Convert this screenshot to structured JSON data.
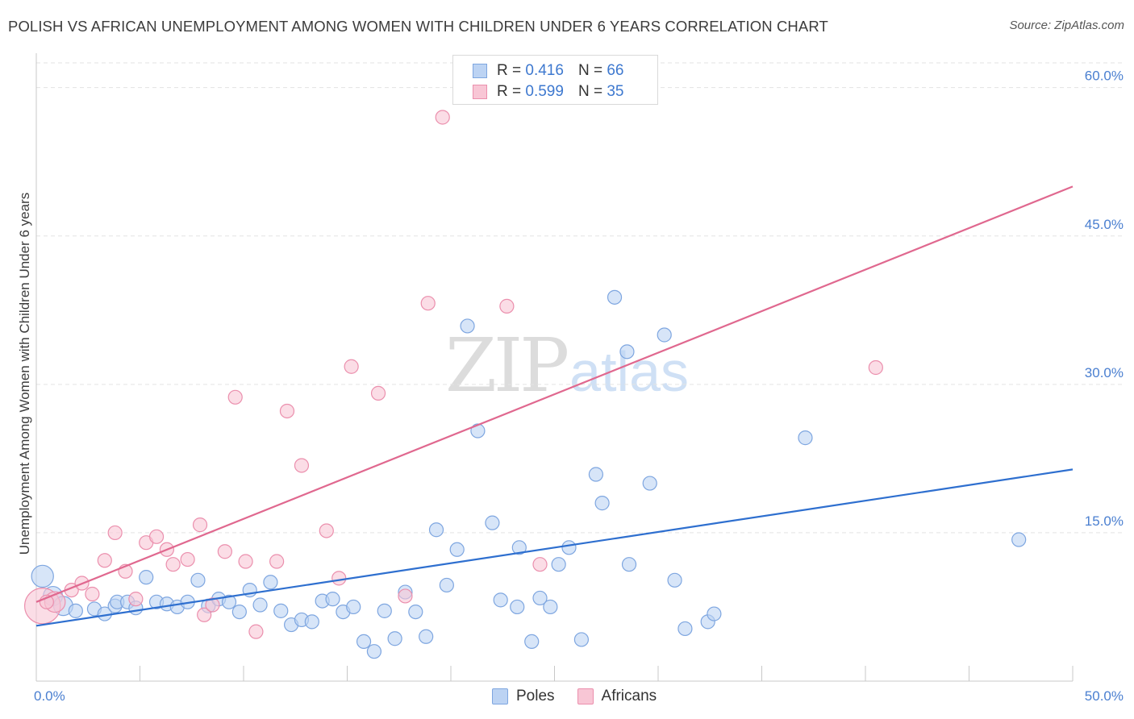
{
  "title": "POLISH VS AFRICAN UNEMPLOYMENT AMONG WOMEN WITH CHILDREN UNDER 6 YEARS CORRELATION CHART",
  "source": "Source: ZipAtlas.com",
  "watermark": {
    "zip": "ZIP",
    "atlas": "atlas"
  },
  "legend_top": {
    "rows": [
      {
        "r_label": "R = ",
        "r_value": "0.416",
        "n_label": "N = ",
        "n_value": "66"
      },
      {
        "r_label": "R = ",
        "r_value": "0.599",
        "n_label": "N = ",
        "n_value": "35"
      }
    ]
  },
  "legend_bottom": [
    "Poles",
    "Africans"
  ],
  "colors": {
    "poles_fill": "#bcd3f3",
    "poles_stroke": "#7ea6e0",
    "poles_line": "#2e6fcf",
    "africans_fill": "#f8c6d5",
    "africans_stroke": "#eb8fad",
    "africans_line": "#e0688f",
    "tick_text": "#4a7fd0",
    "grid": "#e3e3e3"
  },
  "chart_data": {
    "type": "scatter",
    "title": "POLISH VS AFRICAN UNEMPLOYMENT AMONG WOMEN WITH CHILDREN UNDER 6 YEARS CORRELATION CHART",
    "xlabel": "",
    "ylabel": "Unemployment Among Women with Children Under 6 years",
    "xlim": [
      0,
      50
    ],
    "ylim": [
      0,
      62.5
    ],
    "x_tick_labels": [
      "0.0%",
      "50.0%"
    ],
    "y_ticks": [
      15,
      30,
      45,
      60
    ],
    "y_tick_labels": [
      "15.0%",
      "30.0%",
      "45.0%",
      "60.0%"
    ],
    "grid": true,
    "legend_position": "top-center",
    "series": [
      {
        "name": "Poles",
        "R": 0.416,
        "N": 66,
        "trend": {
          "x": [
            0,
            50
          ],
          "y": [
            5.6,
            21.4
          ]
        },
        "points": [
          [
            0.3,
            10.6,
            1.6
          ],
          [
            0.8,
            8.6,
            1.4
          ],
          [
            1.3,
            7.6,
            1.4
          ],
          [
            1.9,
            7.1,
            1
          ],
          [
            2.8,
            7.3,
            1
          ],
          [
            3.3,
            6.8,
            1
          ],
          [
            3.8,
            7.6,
            1
          ],
          [
            3.9,
            8.0,
            1
          ],
          [
            4.4,
            8.0,
            1
          ],
          [
            4.8,
            7.4,
            1
          ],
          [
            5.3,
            10.5,
            1
          ],
          [
            5.8,
            8.0,
            1
          ],
          [
            6.3,
            7.8,
            1
          ],
          [
            6.8,
            7.5,
            1
          ],
          [
            7.3,
            8.0,
            1
          ],
          [
            7.8,
            10.2,
            1
          ],
          [
            8.3,
            7.6,
            1
          ],
          [
            8.8,
            8.3,
            1
          ],
          [
            9.3,
            8.0,
            1
          ],
          [
            9.8,
            7.0,
            1
          ],
          [
            10.3,
            9.2,
            1
          ],
          [
            10.8,
            7.7,
            1
          ],
          [
            11.3,
            10.0,
            1
          ],
          [
            11.8,
            7.1,
            1
          ],
          [
            12.3,
            5.7,
            1
          ],
          [
            12.8,
            6.2,
            1
          ],
          [
            13.3,
            6.0,
            1
          ],
          [
            13.8,
            8.1,
            1
          ],
          [
            14.3,
            8.3,
            1
          ],
          [
            14.8,
            7.0,
            1
          ],
          [
            15.3,
            7.5,
            1
          ],
          [
            15.8,
            4.0,
            1
          ],
          [
            16.3,
            3.0,
            1
          ],
          [
            16.8,
            7.1,
            1
          ],
          [
            17.3,
            4.3,
            1
          ],
          [
            17.8,
            9.0,
            1
          ],
          [
            18.3,
            7.0,
            1
          ],
          [
            18.8,
            4.5,
            1
          ],
          [
            19.3,
            15.3,
            1
          ],
          [
            19.8,
            9.7,
            1
          ],
          [
            20.3,
            13.3,
            1
          ],
          [
            20.8,
            35.9,
            1
          ],
          [
            21.3,
            25.3,
            1
          ],
          [
            22.0,
            16.0,
            1
          ],
          [
            22.4,
            8.2,
            1
          ],
          [
            23.2,
            7.5,
            1
          ],
          [
            23.9,
            4.0,
            1
          ],
          [
            23.3,
            13.5,
            1
          ],
          [
            24.3,
            8.4,
            1
          ],
          [
            24.8,
            7.5,
            1
          ],
          [
            25.2,
            11.8,
            1
          ],
          [
            25.7,
            13.5,
            1
          ],
          [
            26.3,
            4.2,
            1
          ],
          [
            27.0,
            20.9,
            1
          ],
          [
            27.3,
            18.0,
            1
          ],
          [
            27.9,
            38.8,
            1
          ],
          [
            28.5,
            33.3,
            1
          ],
          [
            28.6,
            11.8,
            1
          ],
          [
            29.6,
            20.0,
            1
          ],
          [
            30.3,
            35.0,
            1
          ],
          [
            30.8,
            10.2,
            1
          ],
          [
            31.3,
            5.3,
            1
          ],
          [
            32.4,
            6.0,
            1
          ],
          [
            32.7,
            6.8,
            1
          ],
          [
            37.1,
            24.6,
            1
          ],
          [
            47.4,
            14.3,
            1
          ]
        ]
      },
      {
        "name": "Africans",
        "R": 0.599,
        "N": 35,
        "trend": {
          "x": [
            0,
            50
          ],
          "y": [
            8.0,
            50.0
          ]
        },
        "points": [
          [
            0.3,
            7.6,
            2.6
          ],
          [
            0.9,
            8.0,
            1.5
          ],
          [
            1.7,
            9.2,
            1
          ],
          [
            2.2,
            9.9,
            1
          ],
          [
            2.7,
            8.8,
            1
          ],
          [
            3.3,
            12.2,
            1
          ],
          [
            3.8,
            15.0,
            1
          ],
          [
            4.3,
            11.1,
            1
          ],
          [
            4.8,
            8.3,
            1
          ],
          [
            5.3,
            14.0,
            1
          ],
          [
            5.8,
            14.6,
            1
          ],
          [
            6.3,
            13.3,
            1
          ],
          [
            6.6,
            11.8,
            1
          ],
          [
            7.3,
            12.3,
            1
          ],
          [
            7.9,
            15.8,
            1
          ],
          [
            8.1,
            6.7,
            1
          ],
          [
            8.5,
            7.7,
            1
          ],
          [
            9.1,
            13.1,
            1
          ],
          [
            9.6,
            28.7,
            1
          ],
          [
            10.1,
            12.1,
            1
          ],
          [
            10.6,
            5.0,
            1
          ],
          [
            11.6,
            12.1,
            1
          ],
          [
            12.1,
            27.3,
            1
          ],
          [
            12.8,
            21.8,
            1
          ],
          [
            14.0,
            15.2,
            1
          ],
          [
            14.6,
            10.4,
            1
          ],
          [
            15.2,
            31.8,
            1
          ],
          [
            16.5,
            29.1,
            1
          ],
          [
            17.8,
            8.6,
            1
          ],
          [
            18.9,
            38.2,
            1
          ],
          [
            19.6,
            57.0,
            1
          ],
          [
            22.7,
            37.9,
            1
          ],
          [
            24.3,
            11.8,
            1
          ],
          [
            40.5,
            31.7,
            1
          ],
          [
            0.5,
            8.0,
            1
          ]
        ]
      }
    ]
  }
}
